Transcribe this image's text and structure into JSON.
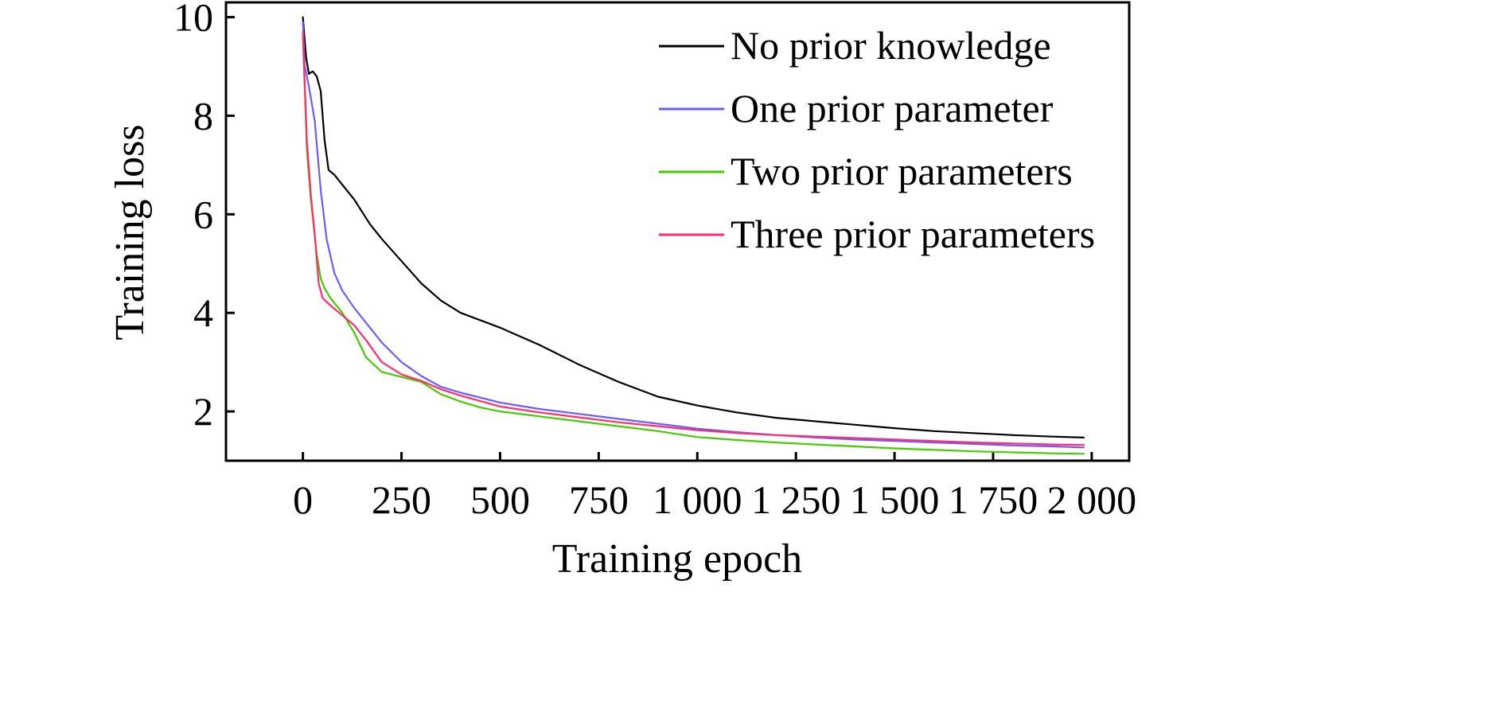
{
  "chart_data": {
    "type": "line",
    "xlabel": "Training epoch",
    "ylabel": "Training loss",
    "xlim": [
      -195,
      2095
    ],
    "ylim": [
      1.0,
      10.3
    ],
    "xticks": [
      {
        "value": 0,
        "label": "0"
      },
      {
        "value": 250,
        "label": "250"
      },
      {
        "value": 500,
        "label": "500"
      },
      {
        "value": 750,
        "label": "750"
      },
      {
        "value": 1000,
        "label": "1 000"
      },
      {
        "value": 1250,
        "label": "1 250"
      },
      {
        "value": 1500,
        "label": "1 500"
      },
      {
        "value": 1750,
        "label": "1 750"
      },
      {
        "value": 2000,
        "label": "2 000"
      }
    ],
    "yticks": [
      {
        "value": 2,
        "label": "2"
      },
      {
        "value": 4,
        "label": "4"
      },
      {
        "value": 6,
        "label": "6"
      },
      {
        "value": 8,
        "label": "8"
      },
      {
        "value": 10,
        "label": "10"
      }
    ],
    "legend_position": "top-right",
    "series": [
      {
        "name": "No prior knowledge",
        "color": "#000000",
        "points": [
          [
            0,
            10.0
          ],
          [
            8,
            9.2
          ],
          [
            15,
            8.85
          ],
          [
            25,
            8.9
          ],
          [
            35,
            8.8
          ],
          [
            45,
            8.5
          ],
          [
            55,
            7.5
          ],
          [
            65,
            6.9
          ],
          [
            80,
            6.8
          ],
          [
            100,
            6.6
          ],
          [
            130,
            6.3
          ],
          [
            170,
            5.8
          ],
          [
            200,
            5.5
          ],
          [
            250,
            5.05
          ],
          [
            300,
            4.6
          ],
          [
            350,
            4.25
          ],
          [
            400,
            4.0
          ],
          [
            500,
            3.7
          ],
          [
            600,
            3.35
          ],
          [
            700,
            2.95
          ],
          [
            800,
            2.6
          ],
          [
            900,
            2.3
          ],
          [
            1000,
            2.12
          ],
          [
            1100,
            1.98
          ],
          [
            1200,
            1.87
          ],
          [
            1300,
            1.8
          ],
          [
            1400,
            1.73
          ],
          [
            1500,
            1.66
          ],
          [
            1600,
            1.6
          ],
          [
            1700,
            1.56
          ],
          [
            1800,
            1.52
          ],
          [
            1900,
            1.49
          ],
          [
            1980,
            1.47
          ]
        ]
      },
      {
        "name": "One prior parameter",
        "color": "#6a5cff",
        "points": [
          [
            0,
            9.9
          ],
          [
            5,
            9.0
          ],
          [
            15,
            8.6
          ],
          [
            30,
            7.9
          ],
          [
            45,
            6.5
          ],
          [
            60,
            5.5
          ],
          [
            80,
            4.8
          ],
          [
            100,
            4.45
          ],
          [
            130,
            4.1
          ],
          [
            170,
            3.7
          ],
          [
            200,
            3.4
          ],
          [
            250,
            3.0
          ],
          [
            300,
            2.72
          ],
          [
            350,
            2.5
          ],
          [
            400,
            2.38
          ],
          [
            500,
            2.18
          ],
          [
            600,
            2.05
          ],
          [
            700,
            1.95
          ],
          [
            800,
            1.85
          ],
          [
            900,
            1.75
          ],
          [
            1000,
            1.65
          ],
          [
            1100,
            1.58
          ],
          [
            1200,
            1.52
          ],
          [
            1300,
            1.47
          ],
          [
            1400,
            1.43
          ],
          [
            1500,
            1.4
          ],
          [
            1600,
            1.37
          ],
          [
            1700,
            1.34
          ],
          [
            1800,
            1.31
          ],
          [
            1900,
            1.29
          ],
          [
            1980,
            1.27
          ]
        ]
      },
      {
        "name": "Two prior parameters",
        "color": "#44cc00",
        "points": [
          [
            0,
            9.6
          ],
          [
            5,
            8.5
          ],
          [
            10,
            7.3
          ],
          [
            20,
            6.3
          ],
          [
            35,
            5.2
          ],
          [
            45,
            4.7
          ],
          [
            55,
            4.5
          ],
          [
            70,
            4.3
          ],
          [
            100,
            4.0
          ],
          [
            130,
            3.6
          ],
          [
            160,
            3.1
          ],
          [
            200,
            2.8
          ],
          [
            250,
            2.7
          ],
          [
            300,
            2.6
          ],
          [
            350,
            2.35
          ],
          [
            400,
            2.2
          ],
          [
            450,
            2.08
          ],
          [
            500,
            2.0
          ],
          [
            600,
            1.9
          ],
          [
            700,
            1.8
          ],
          [
            800,
            1.7
          ],
          [
            900,
            1.6
          ],
          [
            1000,
            1.48
          ],
          [
            1100,
            1.42
          ],
          [
            1200,
            1.37
          ],
          [
            1300,
            1.33
          ],
          [
            1400,
            1.29
          ],
          [
            1500,
            1.25
          ],
          [
            1600,
            1.22
          ],
          [
            1700,
            1.19
          ],
          [
            1800,
            1.17
          ],
          [
            1900,
            1.15
          ],
          [
            1980,
            1.14
          ]
        ]
      },
      {
        "name": "Three prior parameters",
        "color": "#ff2d6f",
        "points": [
          [
            0,
            9.7
          ],
          [
            5,
            8.6
          ],
          [
            10,
            7.5
          ],
          [
            20,
            6.4
          ],
          [
            30,
            5.6
          ],
          [
            40,
            4.6
          ],
          [
            50,
            4.3
          ],
          [
            70,
            4.15
          ],
          [
            100,
            3.95
          ],
          [
            130,
            3.75
          ],
          [
            160,
            3.45
          ],
          [
            200,
            3.0
          ],
          [
            250,
            2.75
          ],
          [
            300,
            2.62
          ],
          [
            350,
            2.45
          ],
          [
            400,
            2.32
          ],
          [
            500,
            2.1
          ],
          [
            600,
            1.98
          ],
          [
            700,
            1.88
          ],
          [
            800,
            1.78
          ],
          [
            900,
            1.7
          ],
          [
            1000,
            1.62
          ],
          [
            1100,
            1.56
          ],
          [
            1200,
            1.52
          ],
          [
            1300,
            1.49
          ],
          [
            1400,
            1.46
          ],
          [
            1500,
            1.43
          ],
          [
            1600,
            1.4
          ],
          [
            1700,
            1.37
          ],
          [
            1800,
            1.35
          ],
          [
            1900,
            1.33
          ],
          [
            1980,
            1.32
          ]
        ]
      }
    ]
  }
}
